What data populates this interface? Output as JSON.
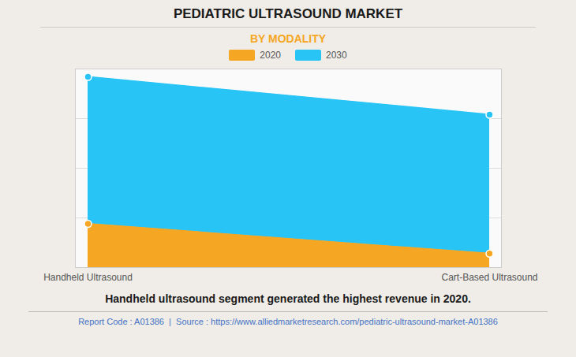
{
  "chart_data": {
    "type": "area",
    "title": "PEDIATRIC ULTRASOUND MARKET",
    "subtitle": "BY MODALITY",
    "categories": [
      "Handheld Ultrasound",
      "Cart-Based Ultrasound"
    ],
    "series": [
      {
        "name": "2020",
        "color": "#F5A623",
        "values": [
          0.22,
          0.07
        ]
      },
      {
        "name": "2030",
        "color": "#29C4F6",
        "values": [
          0.96,
          0.77
        ]
      }
    ],
    "ylim": [
      0,
      1.0
    ],
    "yticks": [
      0,
      0.25,
      0.5,
      0.75,
      1.0
    ],
    "grid": true,
    "tick_labels": "x",
    "legend": "top",
    "marker": "circle",
    "stacked": false,
    "annotation": "Handheld ultrasound segment generated the highest revenue in 2020.",
    "footer": "Report Code : A01386  |  Source : https://www.alliedmarketresearch.com/pediatric-ultrasound-market-A01386"
  }
}
